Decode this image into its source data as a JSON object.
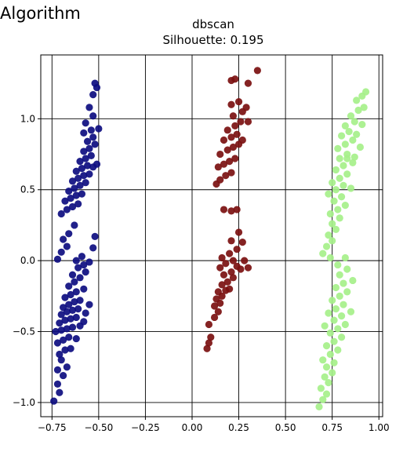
{
  "header": {
    "title": "Algorithm"
  },
  "chart_data": {
    "type": "scatter",
    "title": "dbscan",
    "subtitle": "Silhouette: 0.195",
    "xlim": [
      -0.81,
      1.02
    ],
    "ylim": [
      -1.1,
      1.45
    ],
    "xticks": [
      -0.75,
      -0.5,
      -0.25,
      0.0,
      0.25,
      0.5,
      0.75,
      1.0
    ],
    "xtick_labels": [
      "−0.75",
      "−0.50",
      "−0.25",
      "0.00",
      "0.25",
      "0.50",
      "0.75",
      "1.00"
    ],
    "yticks": [
      -1.0,
      -0.5,
      0.0,
      0.5,
      1.0
    ],
    "ytick_labels": [
      "−1.0",
      "−0.5",
      "0.0",
      "0.5",
      "1.0"
    ],
    "grid": true,
    "series": [
      {
        "color": "#0d0d80",
        "points": [
          [
            -0.74,
            -0.99
          ],
          [
            -0.71,
            -0.93
          ],
          [
            -0.72,
            -0.87
          ],
          [
            -0.69,
            -0.81
          ],
          [
            -0.72,
            -0.77
          ],
          [
            -0.67,
            -0.75
          ],
          [
            -0.7,
            -0.7
          ],
          [
            -0.71,
            -0.66
          ],
          [
            -0.68,
            -0.63
          ],
          [
            -0.65,
            -0.62
          ],
          [
            -0.72,
            -0.58
          ],
          [
            -0.69,
            -0.56
          ],
          [
            -0.66,
            -0.54
          ],
          [
            -0.62,
            -0.55
          ],
          [
            -0.73,
            -0.5
          ],
          [
            -0.7,
            -0.49
          ],
          [
            -0.67,
            -0.48
          ],
          [
            -0.64,
            -0.47
          ],
          [
            -0.6,
            -0.46
          ],
          [
            -0.71,
            -0.44
          ],
          [
            -0.68,
            -0.42
          ],
          [
            -0.65,
            -0.41
          ],
          [
            -0.62,
            -0.4
          ],
          [
            -0.58,
            -0.43
          ],
          [
            -0.7,
            -0.38
          ],
          [
            -0.67,
            -0.36
          ],
          [
            -0.64,
            -0.35
          ],
          [
            -0.61,
            -0.34
          ],
          [
            -0.57,
            -0.37
          ],
          [
            -0.69,
            -0.33
          ],
          [
            -0.66,
            -0.31
          ],
          [
            -0.63,
            -0.29
          ],
          [
            -0.6,
            -0.28
          ],
          [
            -0.55,
            -0.31
          ],
          [
            -0.68,
            -0.26
          ],
          [
            -0.65,
            -0.24
          ],
          [
            -0.62,
            -0.22
          ],
          [
            -0.58,
            -0.2
          ],
          [
            -0.66,
            -0.18
          ],
          [
            -0.63,
            -0.15
          ],
          [
            -0.6,
            -0.12
          ],
          [
            -0.57,
            -0.08
          ],
          [
            -0.64,
            -0.1
          ],
          [
            -0.61,
            -0.05
          ],
          [
            -0.58,
            -0.03
          ],
          [
            -0.55,
            -0.01
          ],
          [
            -0.62,
            0.0
          ],
          [
            -0.59,
            0.03
          ],
          [
            -0.72,
            0.01
          ],
          [
            -0.7,
            0.06
          ],
          [
            -0.67,
            0.1
          ],
          [
            -0.69,
            0.15
          ],
          [
            -0.66,
            0.19
          ],
          [
            -0.63,
            0.25
          ],
          [
            -0.53,
            0.09
          ],
          [
            -0.52,
            0.17
          ],
          [
            -0.7,
            0.33
          ],
          [
            -0.67,
            0.36
          ],
          [
            -0.64,
            0.38
          ],
          [
            -0.61,
            0.4
          ],
          [
            -0.68,
            0.42
          ],
          [
            -0.65,
            0.44
          ],
          [
            -0.62,
            0.46
          ],
          [
            -0.59,
            0.47
          ],
          [
            -0.66,
            0.49
          ],
          [
            -0.63,
            0.51
          ],
          [
            -0.6,
            0.53
          ],
          [
            -0.57,
            0.55
          ],
          [
            -0.64,
            0.56
          ],
          [
            -0.61,
            0.58
          ],
          [
            -0.58,
            0.6
          ],
          [
            -0.55,
            0.61
          ],
          [
            -0.62,
            0.63
          ],
          [
            -0.59,
            0.65
          ],
          [
            -0.56,
            0.67
          ],
          [
            -0.53,
            0.66
          ],
          [
            -0.6,
            0.7
          ],
          [
            -0.57,
            0.72
          ],
          [
            -0.54,
            0.74
          ],
          [
            -0.51,
            0.68
          ],
          [
            -0.58,
            0.77
          ],
          [
            -0.55,
            0.79
          ],
          [
            -0.52,
            0.82
          ],
          [
            -0.56,
            0.84
          ],
          [
            -0.53,
            0.87
          ],
          [
            -0.58,
            0.9
          ],
          [
            -0.54,
            0.92
          ],
          [
            -0.5,
            0.93
          ],
          [
            -0.57,
            0.97
          ],
          [
            -0.53,
            1.02
          ],
          [
            -0.55,
            1.08
          ],
          [
            -0.53,
            1.17
          ],
          [
            -0.51,
            1.22
          ],
          [
            -0.52,
            1.25
          ]
        ]
      },
      {
        "color": "#7b1010",
        "points": [
          [
            0.08,
            -0.62
          ],
          [
            0.09,
            -0.58
          ],
          [
            0.1,
            -0.54
          ],
          [
            0.09,
            -0.45
          ],
          [
            0.12,
            -0.4
          ],
          [
            0.14,
            -0.36
          ],
          [
            0.12,
            -0.32
          ],
          [
            0.15,
            -0.3
          ],
          [
            0.13,
            -0.27
          ],
          [
            0.16,
            -0.25
          ],
          [
            0.14,
            -0.22
          ],
          [
            0.18,
            -0.21
          ],
          [
            0.2,
            -0.2
          ],
          [
            0.16,
            -0.17
          ],
          [
            0.19,
            -0.15
          ],
          [
            0.22,
            -0.12
          ],
          [
            0.17,
            -0.1
          ],
          [
            0.21,
            -0.08
          ],
          [
            0.15,
            -0.05
          ],
          [
            0.24,
            -0.04
          ],
          [
            0.18,
            -0.02
          ],
          [
            0.22,
            0.0
          ],
          [
            0.16,
            0.02
          ],
          [
            0.26,
            -0.06
          ],
          [
            0.2,
            0.05
          ],
          [
            0.24,
            0.08
          ],
          [
            0.3,
            -0.05
          ],
          [
            0.28,
            0.0
          ],
          [
            0.21,
            0.14
          ],
          [
            0.25,
            0.2
          ],
          [
            0.27,
            0.13
          ],
          [
            0.17,
            0.36
          ],
          [
            0.21,
            0.35
          ],
          [
            0.24,
            0.36
          ],
          [
            0.13,
            0.54
          ],
          [
            0.15,
            0.57
          ],
          [
            0.18,
            0.6
          ],
          [
            0.21,
            0.62
          ],
          [
            0.14,
            0.66
          ],
          [
            0.17,
            0.68
          ],
          [
            0.2,
            0.7
          ],
          [
            0.23,
            0.72
          ],
          [
            0.15,
            0.75
          ],
          [
            0.19,
            0.78
          ],
          [
            0.22,
            0.8
          ],
          [
            0.25,
            0.82
          ],
          [
            0.17,
            0.85
          ],
          [
            0.21,
            0.87
          ],
          [
            0.24,
            0.89
          ],
          [
            0.27,
            0.85
          ],
          [
            0.19,
            0.92
          ],
          [
            0.23,
            0.95
          ],
          [
            0.26,
            0.98
          ],
          [
            0.22,
            1.02
          ],
          [
            0.27,
            1.05
          ],
          [
            0.3,
            0.98
          ],
          [
            0.21,
            1.1
          ],
          [
            0.25,
            1.12
          ],
          [
            0.29,
            1.08
          ],
          [
            0.21,
            1.27
          ],
          [
            0.23,
            1.28
          ],
          [
            0.3,
            1.25
          ],
          [
            0.35,
            1.34
          ]
        ]
      },
      {
        "color": "#a6f08a",
        "points": [
          [
            0.68,
            -1.03
          ],
          [
            0.7,
            -0.98
          ],
          [
            0.72,
            -0.94
          ],
          [
            0.69,
            -0.9
          ],
          [
            0.73,
            -0.86
          ],
          [
            0.71,
            -0.82
          ],
          [
            0.75,
            -0.79
          ],
          [
            0.72,
            -0.75
          ],
          [
            0.76,
            -0.72
          ],
          [
            0.7,
            -0.7
          ],
          [
            0.74,
            -0.66
          ],
          [
            0.78,
            -0.63
          ],
          [
            0.72,
            -0.6
          ],
          [
            0.76,
            -0.57
          ],
          [
            0.8,
            -0.54
          ],
          [
            0.74,
            -0.51
          ],
          [
            0.78,
            -0.48
          ],
          [
            0.82,
            -0.45
          ],
          [
            0.71,
            -0.46
          ],
          [
            0.76,
            -0.42
          ],
          [
            0.8,
            -0.39
          ],
          [
            0.73,
            -0.37
          ],
          [
            0.77,
            -0.34
          ],
          [
            0.81,
            -0.31
          ],
          [
            0.85,
            -0.36
          ],
          [
            0.75,
            -0.28
          ],
          [
            0.79,
            -0.25
          ],
          [
            0.83,
            -0.22
          ],
          [
            0.77,
            -0.19
          ],
          [
            0.81,
            -0.16
          ],
          [
            0.86,
            -0.14
          ],
          [
            0.79,
            -0.1
          ],
          [
            0.83,
            -0.06
          ],
          [
            0.78,
            -0.03
          ],
          [
            0.82,
            0.02
          ],
          [
            0.74,
            0.02
          ],
          [
            0.7,
            0.05
          ],
          [
            0.72,
            0.1
          ],
          [
            0.75,
            0.14
          ],
          [
            0.73,
            0.18
          ],
          [
            0.77,
            0.22
          ],
          [
            0.75,
            0.26
          ],
          [
            0.79,
            0.3
          ],
          [
            0.74,
            0.33
          ],
          [
            0.78,
            0.36
          ],
          [
            0.82,
            0.39
          ],
          [
            0.76,
            0.42
          ],
          [
            0.8,
            0.45
          ],
          [
            0.73,
            0.47
          ],
          [
            0.77,
            0.5
          ],
          [
            0.81,
            0.53
          ],
          [
            0.85,
            0.51
          ],
          [
            0.75,
            0.55
          ],
          [
            0.79,
            0.58
          ],
          [
            0.83,
            0.61
          ],
          [
            0.77,
            0.64
          ],
          [
            0.81,
            0.67
          ],
          [
            0.86,
            0.69
          ],
          [
            0.79,
            0.72
          ],
          [
            0.83,
            0.75
          ],
          [
            0.87,
            0.73
          ],
          [
            0.78,
            0.79
          ],
          [
            0.82,
            0.82
          ],
          [
            0.86,
            0.85
          ],
          [
            0.8,
            0.88
          ],
          [
            0.84,
            0.91
          ],
          [
            0.88,
            0.89
          ],
          [
            0.82,
            0.95
          ],
          [
            0.87,
            0.98
          ],
          [
            0.91,
            0.96
          ],
          [
            0.85,
            1.02
          ],
          [
            0.89,
            1.06
          ],
          [
            0.92,
            1.08
          ],
          [
            0.88,
            1.13
          ],
          [
            0.91,
            1.16
          ],
          [
            0.93,
            1.19
          ],
          [
            0.83,
            0.72
          ],
          [
            0.9,
            0.8
          ]
        ]
      }
    ]
  }
}
